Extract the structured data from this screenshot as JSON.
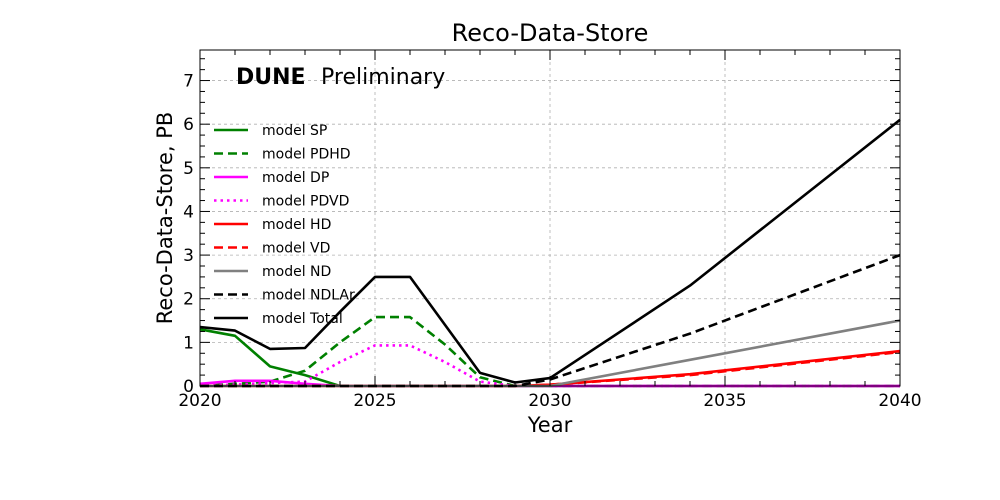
{
  "chart_data": {
    "type": "line",
    "title": "Reco-Data-Store",
    "xlabel": "Year",
    "ylabel": "Reco-Data-Store, PB",
    "brand": "DUNE",
    "watermark": "Preliminary",
    "xlim": [
      2020,
      2040
    ],
    "ylim": [
      0,
      7.7
    ],
    "xticks": [
      2020,
      2025,
      2030,
      2035,
      2040
    ],
    "yticks": [
      0,
      1,
      2,
      3,
      4,
      5,
      6,
      7
    ],
    "grid": true,
    "legend_position": "upper-left",
    "series": [
      {
        "name": "model SP",
        "color": "#008000",
        "dash": "solid",
        "x": [
          2020,
          2021,
          2022,
          2023,
          2024,
          2030,
          2040
        ],
        "y": [
          1.3,
          1.15,
          0.45,
          0.25,
          0.0,
          0.0,
          0.0
        ]
      },
      {
        "name": "model PDHD",
        "color": "#008000",
        "dash": "dashed",
        "x": [
          2020,
          2022,
          2023,
          2024,
          2025,
          2026,
          2027,
          2028,
          2029,
          2040
        ],
        "y": [
          0.0,
          0.1,
          0.35,
          1.0,
          1.58,
          1.58,
          0.95,
          0.2,
          0.0,
          0.0
        ]
      },
      {
        "name": "model DP",
        "color": "#ff00ff",
        "dash": "solid",
        "x": [
          2020,
          2021,
          2022,
          2023,
          2024,
          2040
        ],
        "y": [
          0.05,
          0.12,
          0.12,
          0.05,
          0.0,
          0.0
        ]
      },
      {
        "name": "model PDVD",
        "color": "#ff00ff",
        "dash": "dotted",
        "x": [
          2020,
          2023,
          2024,
          2025,
          2026,
          2027,
          2028,
          2029,
          2040
        ],
        "y": [
          0.0,
          0.1,
          0.55,
          0.93,
          0.93,
          0.55,
          0.1,
          0.0,
          0.0
        ]
      },
      {
        "name": "model HD",
        "color": "#ff0000",
        "dash": "solid",
        "x": [
          2020,
          2029,
          2030,
          2034,
          2040
        ],
        "y": [
          0.0,
          0.0,
          0.03,
          0.27,
          0.8
        ]
      },
      {
        "name": "model VD",
        "color": "#ff0000",
        "dash": "dashed",
        "x": [
          2020,
          2029,
          2030,
          2034,
          2040
        ],
        "y": [
          0.0,
          0.0,
          0.03,
          0.25,
          0.78
        ]
      },
      {
        "name": "model ND",
        "color": "#808080",
        "dash": "solid",
        "x": [
          2020,
          2030,
          2034,
          2040
        ],
        "y": [
          0.0,
          0.0,
          0.6,
          1.5
        ]
      },
      {
        "name": "model NDLAr",
        "color": "#000000",
        "dash": "dashed",
        "x": [
          2020,
          2029,
          2030,
          2034,
          2040
        ],
        "y": [
          0.0,
          0.0,
          0.15,
          1.2,
          3.0
        ]
      },
      {
        "name": "model Total",
        "color": "#000000",
        "dash": "solid",
        "x": [
          2020,
          2021,
          2022,
          2023,
          2024,
          2025,
          2026,
          2027,
          2028,
          2029,
          2030,
          2034,
          2040
        ],
        "y": [
          1.35,
          1.27,
          0.85,
          0.87,
          1.7,
          2.5,
          2.5,
          1.4,
          0.3,
          0.08,
          0.18,
          2.3,
          6.1
        ]
      }
    ]
  }
}
